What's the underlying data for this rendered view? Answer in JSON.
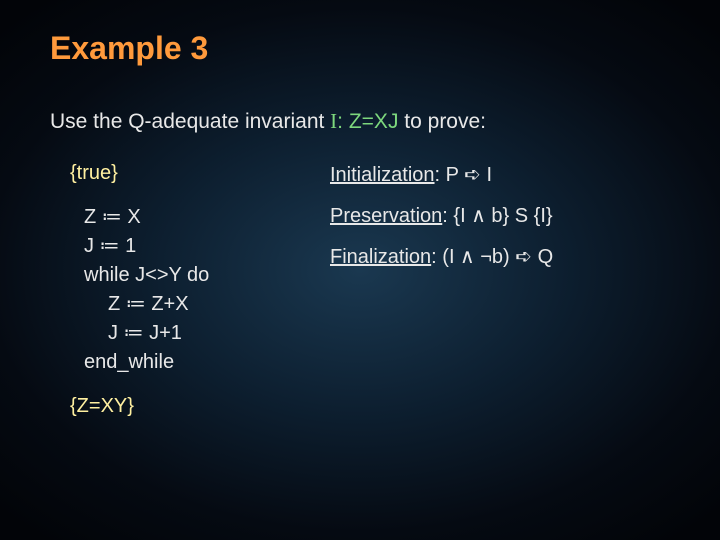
{
  "colors": {
    "background_center": "#1a3850",
    "background_outer": "#020408",
    "title": "#ff9a3c",
    "body_text": "#e8e8e8",
    "invariant": "#7dd87d",
    "assertion": "#fff0a0"
  },
  "title": "Example 3",
  "intro": {
    "prefix": "Use the Q-adequate invariant ",
    "invariant_name": "I",
    "invariant_sep": ": ",
    "invariant_body": "Z=XJ",
    "suffix": " to prove:"
  },
  "hoare": {
    "pre": "{true}",
    "post": "{Z=XY}"
  },
  "code": {
    "l1": "Z ≔ X",
    "l2": "J ≔ 1",
    "l3": "while J<>Y do",
    "l4": "Z ≔ Z+X",
    "l5": "J ≔ J+1",
    "l6": "end_while"
  },
  "conditions": {
    "init_label": "Initialization",
    "init_body": ": P ➪ I",
    "pres_label": "Preservation",
    "pres_body": ": {I ∧ b} S {I}",
    "fin_label": "Finalization",
    "fin_body": ": (I ∧ ¬b) ➪ Q"
  },
  "typography": {
    "title_fontsize": 32,
    "body_fontsize": 20,
    "intro_fontsize": 21,
    "font_family": "Trebuchet MS"
  }
}
